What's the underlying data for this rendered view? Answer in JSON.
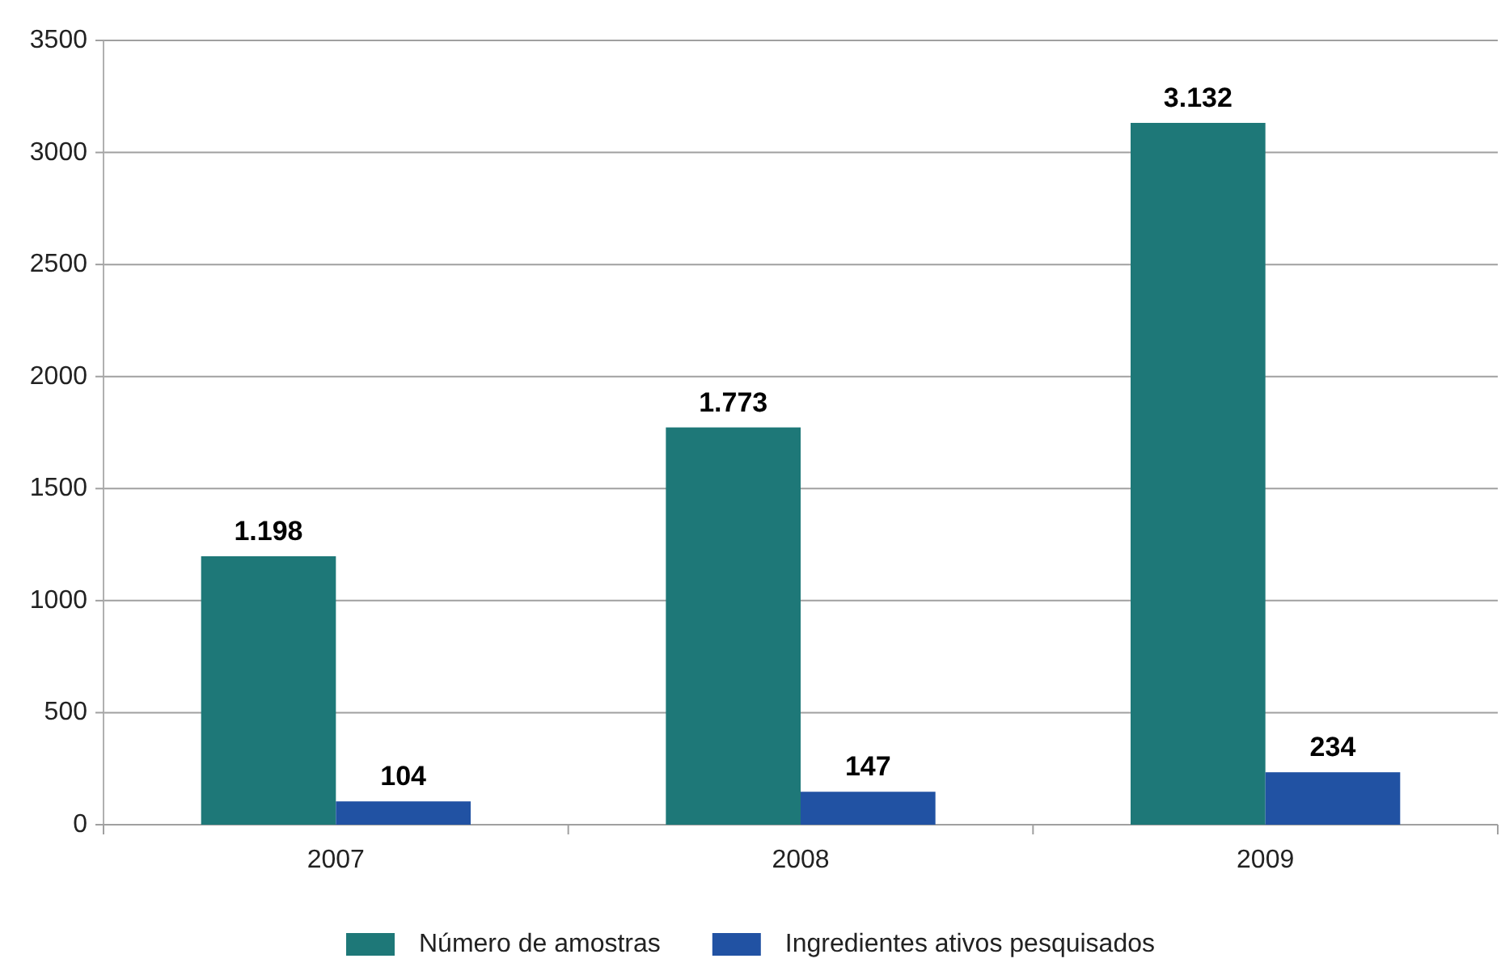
{
  "chart_data": {
    "type": "bar",
    "categories": [
      "2007",
      "2008",
      "2009"
    ],
    "series": [
      {
        "name": "Número de amostras",
        "color": "#1e7878",
        "values": [
          1198,
          1773,
          3132
        ],
        "value_labels": [
          "1.198",
          "1.773",
          "3.132"
        ]
      },
      {
        "name": "Ingredientes ativos pesquisados",
        "color": "#2152a3",
        "values": [
          104,
          147,
          234
        ],
        "value_labels": [
          "104",
          "147",
          "234"
        ]
      }
    ],
    "ylim": [
      0,
      3500
    ],
    "yticks": [
      0,
      500,
      1000,
      1500,
      2000,
      2500,
      3000,
      3500
    ],
    "grid": "y",
    "legend": "bottom"
  }
}
